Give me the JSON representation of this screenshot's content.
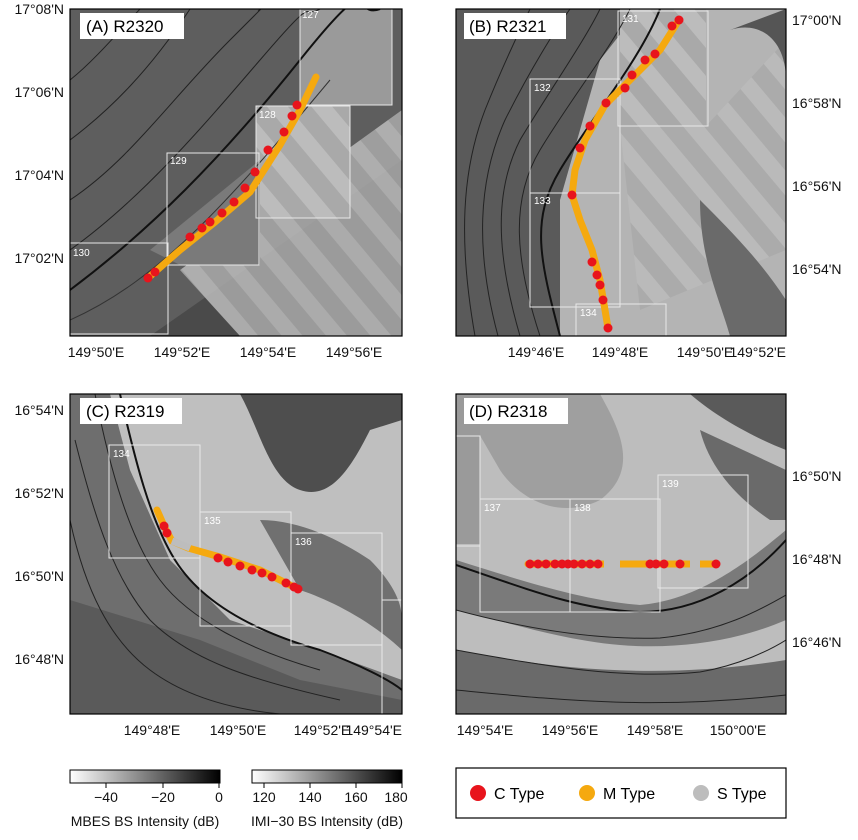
{
  "panels": [
    {
      "title": "(A) R2320",
      "y_ticks": [
        "17°08'N",
        "17°06'N",
        "17°04'N",
        "17°02'N"
      ],
      "x_ticks": [
        "149°50'E",
        "149°52'E",
        "149°54'E",
        "149°56'E"
      ],
      "boxes": [
        "127",
        "128",
        "129",
        "130"
      ]
    },
    {
      "title": "(B) R2321",
      "y_ticks": [
        "17°00'N",
        "16°58'N",
        "16°56'N",
        "16°54'N"
      ],
      "x_ticks": [
        "149°46'E",
        "149°48'E",
        "149°50'E",
        "149°52'E"
      ],
      "boxes": [
        "131",
        "132",
        "133",
        "134"
      ]
    },
    {
      "title": "(C) R2319",
      "y_ticks": [
        "16°54'N",
        "16°52'N",
        "16°50'N",
        "16°48'N"
      ],
      "x_ticks": [
        "149°48'E",
        "149°50'E",
        "149°52'E",
        "149°54'E"
      ],
      "boxes": [
        "134",
        "135",
        "136"
      ]
    },
    {
      "title": "(D) R2318",
      "y_ticks": [
        "16°50'N",
        "16°48'N",
        "16°46'N"
      ],
      "x_ticks": [
        "149°54'E",
        "149°56'E",
        "149°58'E",
        "150°00'E"
      ],
      "boxes": [
        "137",
        "138",
        "139"
      ]
    }
  ],
  "colorbars": [
    {
      "label": "MBES BS Intensity (dB)",
      "ticks": [
        "−40",
        "−20",
        "0"
      ]
    },
    {
      "label": "IMI−30 BS Intensity (dB)",
      "ticks": [
        "120",
        "140",
        "160",
        "180"
      ]
    }
  ],
  "legend": [
    {
      "label": "C Type",
      "color": "#e8141c"
    },
    {
      "label": "M Type",
      "color": "#f5a90f"
    },
    {
      "label": "S Type",
      "color": "#bdbdbd"
    }
  ]
}
